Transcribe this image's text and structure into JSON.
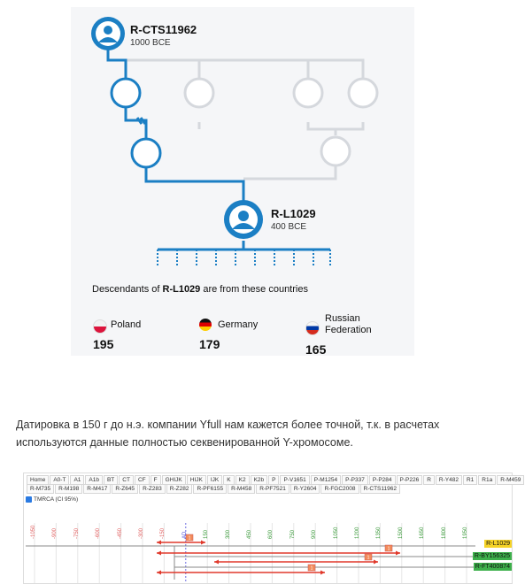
{
  "tree": {
    "top_ancestor": {
      "name": "R-CTS11962",
      "date": "1000 BCE"
    },
    "target": {
      "name": "R-L1029",
      "date": "400 BCE"
    }
  },
  "descendants": {
    "prefix": "Descendants of ",
    "haplogroup": "R-L1029",
    "suffix": " are from these countries"
  },
  "countries": [
    {
      "name": "Poland",
      "count": "195",
      "flag": "poland-flag-icon"
    },
    {
      "name": "Germany",
      "count": "179",
      "flag": "germany-flag-icon"
    },
    {
      "name": "Russian Federation",
      "count": "165",
      "flag": "russia-flag-icon"
    }
  ],
  "paragraph": "Датировка в   150 г до н.э. компании Yfull   нам кажется более точной, т.к. в расчетах используются  данные полностью секвенированной Y-хромосоме.",
  "yfull": {
    "nav_row1": [
      "Home",
      "A0-T",
      "A1",
      "A1b",
      "BT",
      "CT",
      "CF",
      "F",
      "GHIJK",
      "HIJK",
      "IJK",
      "K",
      "K2",
      "K2b",
      "P",
      "P-V1651",
      "P-M1254",
      "P-P337",
      "P-P284",
      "P-P226",
      "R",
      "R-Y482",
      "R1",
      "R1a",
      "R-M459"
    ],
    "nav_row2": [
      "R-M735",
      "R-M198",
      "R-M417",
      "R-Z645",
      "R-Z283",
      "R-Z282",
      "R-PF6155",
      "R-M458",
      "R-PF7521",
      "R-Y2604",
      "R-FGC2008",
      "R-CTS11962"
    ],
    "tmrca_label": "TMRCA (CI 95%)",
    "ticks_neg": [
      "-1050",
      "-900",
      "-750",
      "-600",
      "-450",
      "-300",
      "-150"
    ],
    "tick_zero": "AD",
    "ticks_pos": [
      "150",
      "300",
      "450",
      "600",
      "750",
      "900",
      "1050",
      "1200",
      "1350",
      "1500",
      "1650",
      "1800",
      "1950"
    ],
    "haplogroups": [
      {
        "name": "R-L1029",
        "color": "#f5d327"
      },
      {
        "name": "R-BY156325",
        "color": "#3db04b"
      },
      {
        "name": "R-FT400874",
        "color": "#3db04b"
      }
    ],
    "markers": [
      "1",
      "1",
      "1",
      "1"
    ]
  },
  "colors": {
    "tree_blue": "#1b7fc4",
    "tree_grey": "#d8dbe0",
    "accent_red": "#e0392b"
  }
}
